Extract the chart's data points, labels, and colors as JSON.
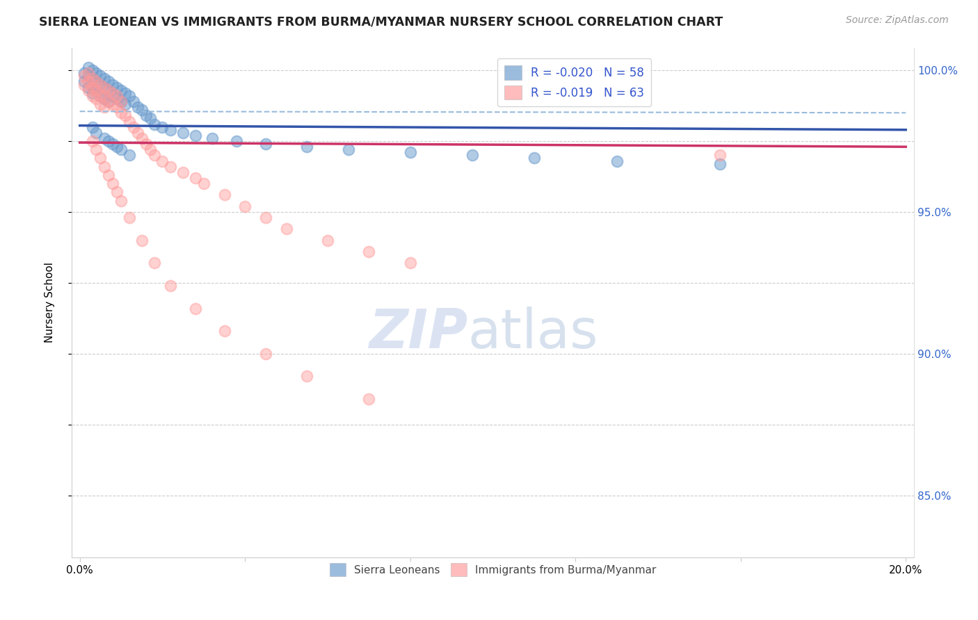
{
  "title": "SIERRA LEONEAN VS IMMIGRANTS FROM BURMA/MYANMAR NURSERY SCHOOL CORRELATION CHART",
  "source": "Source: ZipAtlas.com",
  "ylabel": "Nursery School",
  "xlim": [
    -0.002,
    0.202
  ],
  "ylim": [
    0.828,
    1.008
  ],
  "xticks": [
    0.0,
    0.04,
    0.08,
    0.12,
    0.16,
    0.2
  ],
  "xticklabels": [
    "0.0%",
    "",
    "",
    "",
    "",
    "20.0%"
  ],
  "yticks_right": [
    1.0,
    0.95,
    0.9,
    0.85
  ],
  "ytick_labels_right": [
    "100.0%",
    "95.0%",
    "90.0%",
    "85.0%"
  ],
  "grid_color": "#cccccc",
  "background_color": "#ffffff",
  "blue_color": "#6699cc",
  "pink_color": "#ff9999",
  "blue_line_color": "#3355aa",
  "pink_line_color": "#cc3366",
  "blue_dashed_color": "#99bbdd",
  "legend_R_blue": "R = -0.020",
  "legend_N_blue": "N = 58",
  "legend_R_pink": "R = -0.019",
  "legend_N_pink": "N = 63",
  "legend_label_blue": "Sierra Leoneans",
  "legend_label_pink": "Immigrants from Burma/Myanmar",
  "blue_trend": [
    0.9805,
    0.979
  ],
  "pink_trend": [
    0.9745,
    0.973
  ],
  "blue_dashed": [
    0.9855,
    0.985
  ],
  "blue_scatter_x": [
    0.001,
    0.001,
    0.002,
    0.002,
    0.002,
    0.003,
    0.003,
    0.003,
    0.003,
    0.004,
    0.004,
    0.004,
    0.005,
    0.005,
    0.005,
    0.006,
    0.006,
    0.006,
    0.007,
    0.007,
    0.007,
    0.008,
    0.008,
    0.009,
    0.009,
    0.01,
    0.01,
    0.011,
    0.011,
    0.012,
    0.013,
    0.014,
    0.015,
    0.016,
    0.017,
    0.018,
    0.02,
    0.022,
    0.025,
    0.028,
    0.032,
    0.038,
    0.045,
    0.055,
    0.065,
    0.08,
    0.095,
    0.11,
    0.13,
    0.155,
    0.003,
    0.004,
    0.006,
    0.007,
    0.008,
    0.009,
    0.01,
    0.012
  ],
  "blue_scatter_y": [
    0.999,
    0.996,
    1.001,
    0.998,
    0.994,
    1.0,
    0.997,
    0.994,
    0.992,
    0.999,
    0.996,
    0.993,
    0.998,
    0.995,
    0.991,
    0.997,
    0.994,
    0.99,
    0.996,
    0.993,
    0.989,
    0.995,
    0.991,
    0.994,
    0.99,
    0.993,
    0.989,
    0.992,
    0.988,
    0.991,
    0.989,
    0.987,
    0.986,
    0.984,
    0.983,
    0.981,
    0.98,
    0.979,
    0.978,
    0.977,
    0.976,
    0.975,
    0.974,
    0.973,
    0.972,
    0.971,
    0.97,
    0.969,
    0.968,
    0.967,
    0.98,
    0.978,
    0.976,
    0.975,
    0.974,
    0.973,
    0.972,
    0.97
  ],
  "pink_scatter_x": [
    0.001,
    0.001,
    0.002,
    0.002,
    0.002,
    0.003,
    0.003,
    0.003,
    0.004,
    0.004,
    0.004,
    0.005,
    0.005,
    0.005,
    0.006,
    0.006,
    0.006,
    0.007,
    0.007,
    0.008,
    0.008,
    0.009,
    0.009,
    0.01,
    0.01,
    0.011,
    0.012,
    0.013,
    0.014,
    0.015,
    0.016,
    0.017,
    0.018,
    0.02,
    0.022,
    0.025,
    0.028,
    0.03,
    0.035,
    0.04,
    0.045,
    0.05,
    0.06,
    0.07,
    0.08,
    0.155,
    0.003,
    0.004,
    0.005,
    0.006,
    0.007,
    0.008,
    0.009,
    0.01,
    0.012,
    0.015,
    0.018,
    0.022,
    0.028,
    0.035,
    0.045,
    0.055,
    0.07
  ],
  "pink_scatter_y": [
    0.998,
    0.995,
    0.999,
    0.996,
    0.993,
    0.997,
    0.994,
    0.991,
    0.996,
    0.993,
    0.99,
    0.995,
    0.991,
    0.988,
    0.994,
    0.991,
    0.987,
    0.993,
    0.989,
    0.992,
    0.988,
    0.991,
    0.987,
    0.989,
    0.985,
    0.984,
    0.982,
    0.98,
    0.978,
    0.976,
    0.974,
    0.972,
    0.97,
    0.968,
    0.966,
    0.964,
    0.962,
    0.96,
    0.956,
    0.952,
    0.948,
    0.944,
    0.94,
    0.936,
    0.932,
    0.97,
    0.975,
    0.972,
    0.969,
    0.966,
    0.963,
    0.96,
    0.957,
    0.954,
    0.948,
    0.94,
    0.932,
    0.924,
    0.916,
    0.908,
    0.9,
    0.892,
    0.884
  ]
}
